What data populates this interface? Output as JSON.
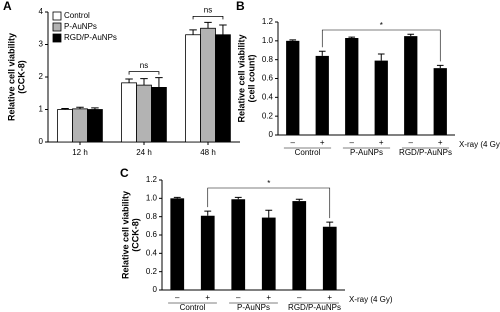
{
  "chart_data": [
    {
      "type": "bar",
      "panel": "A",
      "ylabel": [
        "Relative cell viability",
        "(CCK-8)"
      ],
      "categories": [
        "12 h",
        "24 h",
        "48 h"
      ],
      "series": [
        {
          "name": "Control",
          "color": "#ffffff",
          "values": [
            1.0,
            1.82,
            3.3
          ],
          "errors": [
            0.03,
            0.12,
            0.15
          ]
        },
        {
          "name": "P-AuNPs",
          "color": "#b3b3b3",
          "values": [
            1.02,
            1.75,
            3.5
          ],
          "errors": [
            0.05,
            0.2,
            0.18
          ]
        },
        {
          "name": "RGD/P-AuNPs",
          "color": "#000000",
          "values": [
            1.0,
            1.68,
            3.3
          ],
          "errors": [
            0.05,
            0.3,
            0.3
          ]
        }
      ],
      "annotations": [
        "ns",
        "ns"
      ],
      "ylim": [
        0,
        4
      ],
      "yticks": [
        0,
        1,
        2,
        3,
        4
      ]
    },
    {
      "type": "bar",
      "panel": "B",
      "ylabel": [
        "Relative cell viability",
        "(cell count)"
      ],
      "categories": [
        "–",
        "+",
        "–",
        "+",
        "–",
        "+"
      ],
      "groups": [
        "Control",
        "P-AuNPs",
        "RGD/P-AuNPs"
      ],
      "group_label": "X-ray (4 Gy)",
      "color": "#000000",
      "values": [
        1.0,
        0.84,
        1.03,
        0.79,
        1.05,
        0.71
      ],
      "errors": [
        0.01,
        0.05,
        0.01,
        0.07,
        0.02,
        0.03
      ],
      "significance": "*",
      "ylim": [
        0,
        1.2
      ],
      "yticks": [
        0,
        0.2,
        0.4,
        0.6,
        0.8,
        {
          "value": 1,
          "label": "1.0"
        },
        1.2
      ]
    },
    {
      "type": "bar",
      "panel": "C",
      "ylabel": [
        "Relative cell viability",
        "(CCK-8)"
      ],
      "categories": [
        "–",
        "+",
        "–",
        "+",
        "–",
        "+"
      ],
      "groups": [
        "Control",
        "P-AuNPs",
        "RGD/P-AuNPs"
      ],
      "group_label": "X-ray (4 Gy)",
      "color": "#000000",
      "values": [
        1.0,
        0.81,
        0.99,
        0.79,
        0.97,
        0.69
      ],
      "errors": [
        0.01,
        0.05,
        0.02,
        0.08,
        0.02,
        0.05
      ],
      "significance": "*",
      "ylim": [
        0,
        1.2
      ],
      "yticks": [
        0,
        0.2,
        0.4,
        0.6,
        0.8,
        {
          "value": 1,
          "label": "1.0"
        },
        1.2
      ]
    }
  ]
}
